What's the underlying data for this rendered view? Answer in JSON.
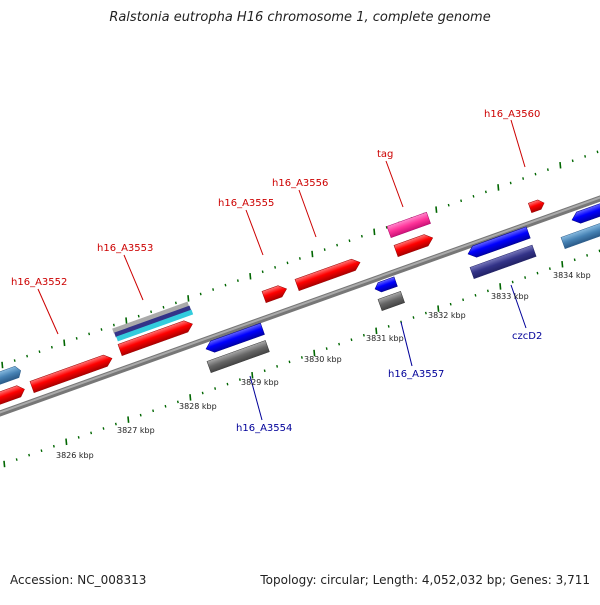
{
  "title": "Ralstonia eutropha H16 chromosome 1, complete genome",
  "footer": {
    "accession": "Accession: NC_008313",
    "summary": "Topology: circular; Length: 4,052,032 bp; Genes: 3,711"
  },
  "colors": {
    "forward_cds": "#ff0000",
    "reverse_cds": "#0000ff",
    "forward_label": "#cc0000",
    "reverse_label": "#000099",
    "trna": "#ff3399",
    "backbone": "#888888",
    "ticks": "#006600",
    "grey_feature": "#666666",
    "dark_blue_feature": "#333388",
    "teal_feature": "#33aacc",
    "steel_feature": "#4682b4"
  },
  "ruler": {
    "unit": "kbp",
    "labels": [
      "3826 kbp",
      "3827 kbp",
      "3828 kbp",
      "3829 kbp",
      "3830 kbp",
      "3831 kbp",
      "3832 kbp",
      "3833 kbp",
      "3834 kbp"
    ]
  },
  "forward_labels": [
    "h16_A3552",
    "h16_A3553",
    "h16_A3555",
    "h16_A3556",
    "tag",
    "h16_A3560"
  ],
  "reverse_labels": [
    "h16_A3554",
    "h16_A3557",
    "czcD2"
  ]
}
